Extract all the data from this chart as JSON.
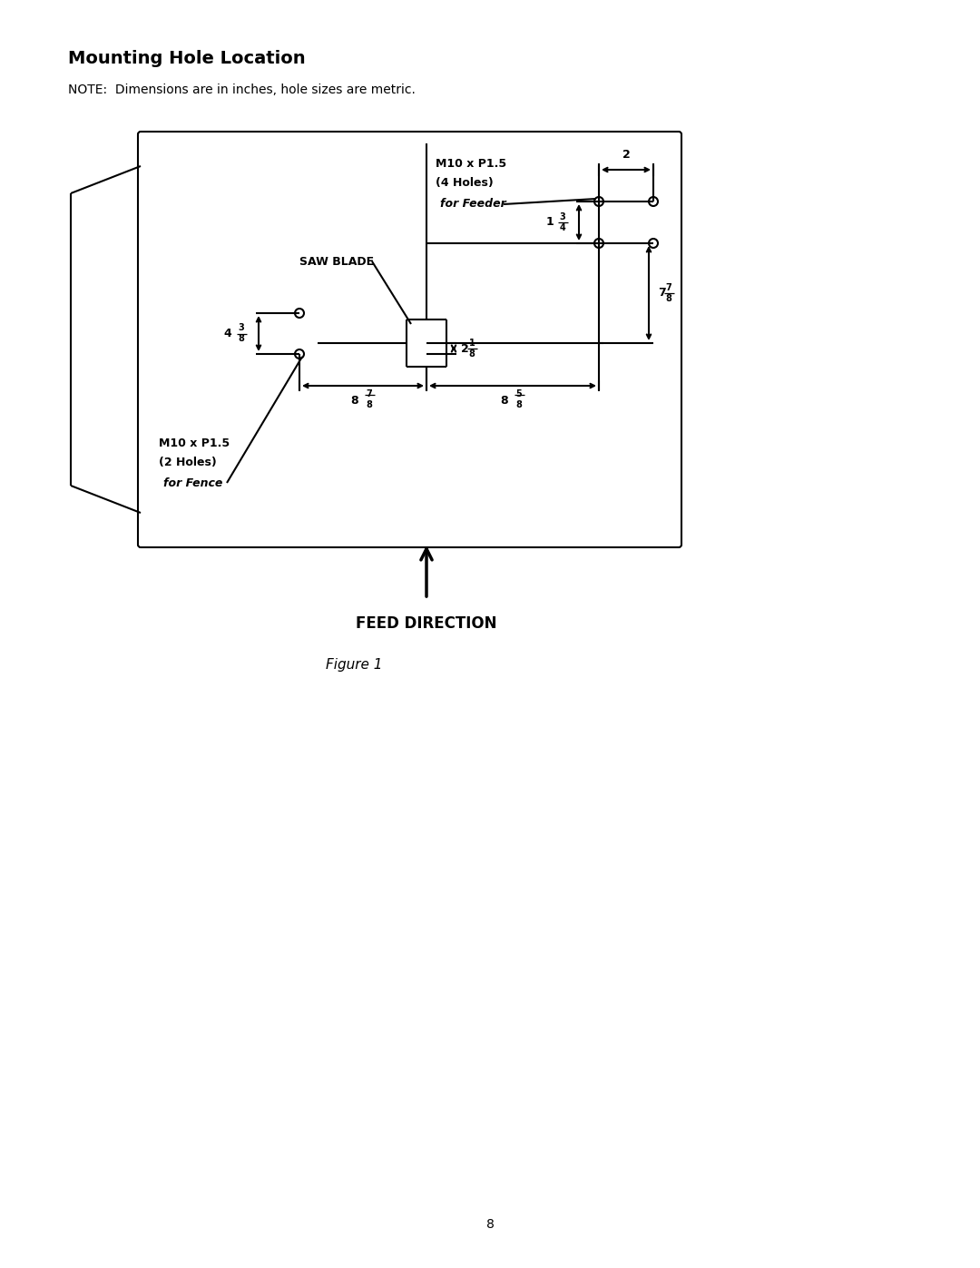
{
  "title": "Mounting Hole Location",
  "note": "NOTE:  Dimensions are in inches, hole sizes are metric.",
  "fig_label": "Figure 1",
  "page_number": "8",
  "feed_direction_label": "FEED DIRECTION",
  "bg_color": "#ffffff",
  "line_color": "#000000",
  "font_color": "#000000"
}
